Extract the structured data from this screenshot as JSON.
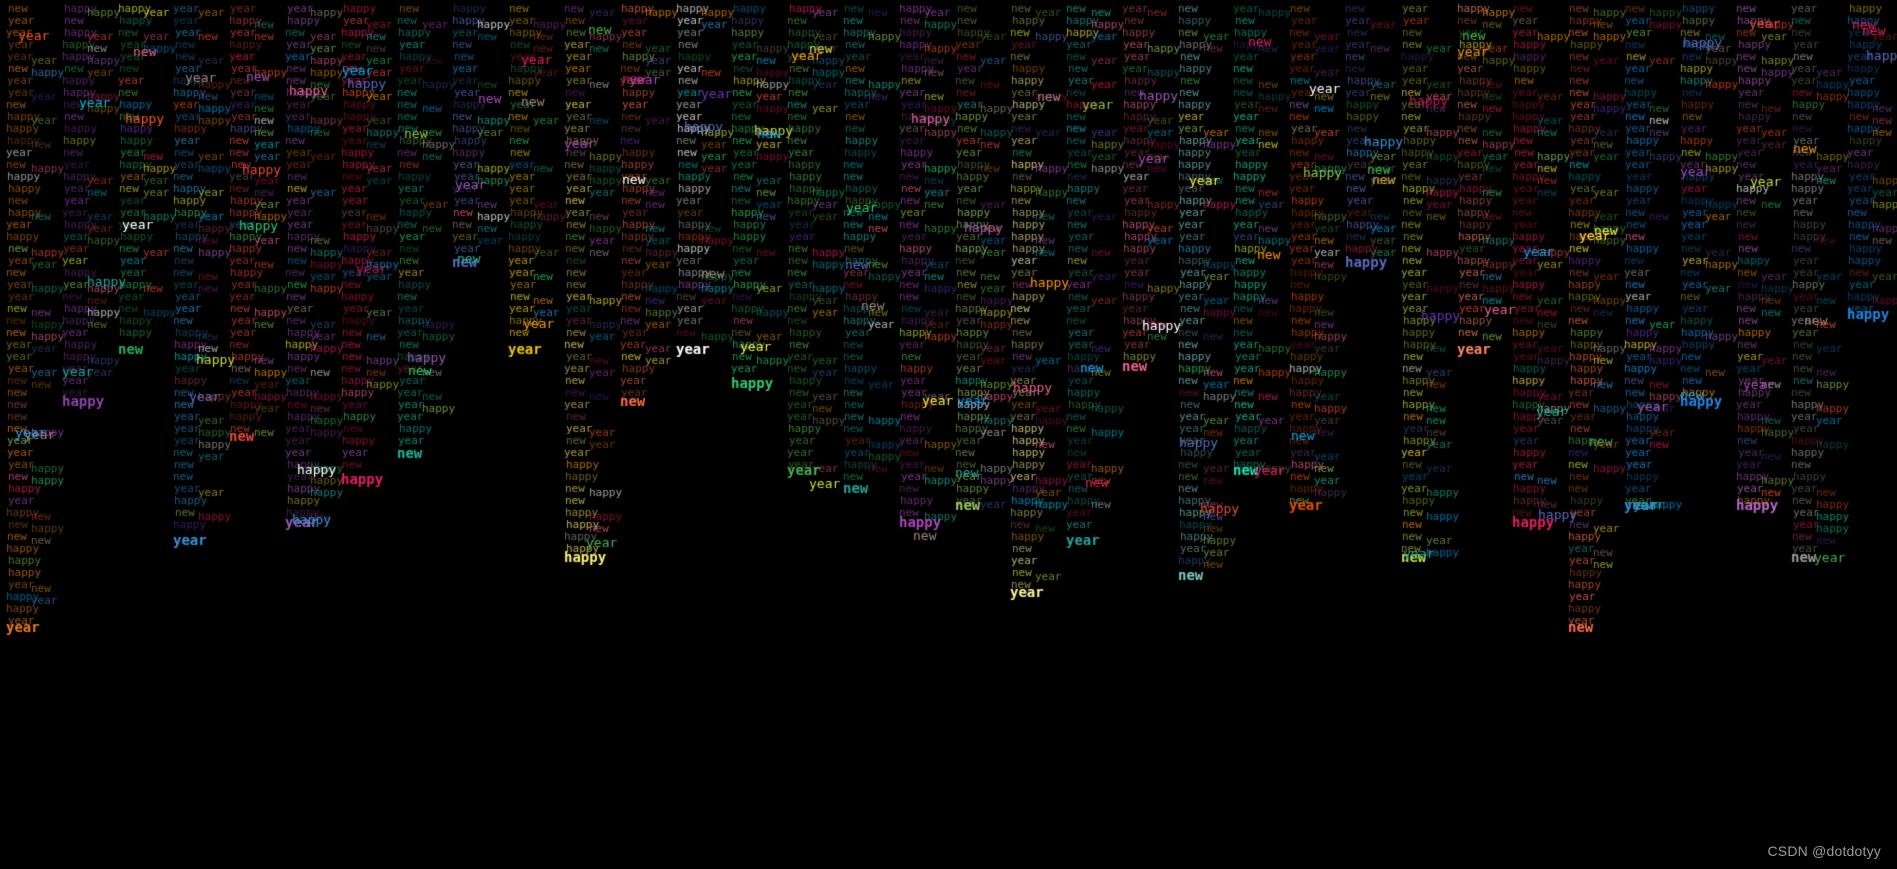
{
  "animation": {
    "words": [
      "happy",
      "new",
      "year"
    ],
    "background_color": "#000000",
    "palette": [
      "#e74c3c",
      "#f39c12",
      "#2ecc71",
      "#3498db",
      "#9b59b6",
      "#1abc9c",
      "#e91e63",
      "#cddc39",
      "#ffeb3b",
      "#00bcd4",
      "#8bc34a",
      "#ff5722",
      "#673ab7",
      "#5c6bc0",
      "#ffffff",
      "#4caf50",
      "#ff9800",
      "#03a9f4",
      "#c2185b",
      "#a1887f",
      "#26a69a",
      "#ab47bc",
      "#f06292",
      "#9ccc65"
    ],
    "columns": [
      {
        "word": "year",
        "color": "#e67e22",
        "length": 0.72
      },
      {
        "word": "happy",
        "color": "#8e44ad",
        "length": 0.46
      },
      {
        "word": "new",
        "color": "#27ae60",
        "length": 0.4
      },
      {
        "word": "year",
        "color": "#3498db",
        "length": 0.62
      },
      {
        "word": "new",
        "color": "#e74c3c",
        "length": 0.5
      },
      {
        "word": "year",
        "color": "#9b59b6",
        "length": 0.6
      },
      {
        "word": "happy",
        "color": "#e91e63",
        "length": 0.55
      },
      {
        "word": "new",
        "color": "#1abc9c",
        "length": 0.52
      },
      {
        "word": "new",
        "color": "#5c6bc0",
        "length": 0.3
      },
      {
        "word": "year",
        "color": "#f1c40f",
        "length": 0.4
      },
      {
        "word": "happy",
        "color": "#fff176",
        "length": 0.64
      },
      {
        "word": "new",
        "color": "#ff7043",
        "length": 0.46
      },
      {
        "word": "year",
        "color": "#ffffff",
        "length": 0.4
      },
      {
        "word": "happy",
        "color": "#2ecc71",
        "length": 0.44
      },
      {
        "word": "year",
        "color": "#4caf50",
        "length": 0.54
      },
      {
        "word": "new",
        "color": "#26a69a",
        "length": 0.56
      },
      {
        "word": "happy",
        "color": "#ab47bc",
        "length": 0.6
      },
      {
        "word": "new",
        "color": "#9ccc65",
        "length": 0.58
      },
      {
        "word": "year",
        "color": "#fff59d",
        "length": 0.68
      },
      {
        "word": "year",
        "color": "#26a69a",
        "length": 0.62
      },
      {
        "word": "new",
        "color": "#f06292",
        "length": 0.42
      },
      {
        "word": "new",
        "color": "#80cbc4",
        "length": 0.66
      },
      {
        "word": "new",
        "color": "#1de9b6",
        "length": 0.54
      },
      {
        "word": "year",
        "color": "#e65100",
        "length": 0.58
      },
      {
        "word": "happy",
        "color": "#5c6bc0",
        "length": 0.3
      },
      {
        "word": "new",
        "color": "#cddc39",
        "length": 0.64
      },
      {
        "word": "year",
        "color": "#ff8a65",
        "length": 0.4
      },
      {
        "word": "happy",
        "color": "#e91e63",
        "length": 0.6
      },
      {
        "word": "new",
        "color": "#ff7043",
        "length": 0.72
      },
      {
        "word": "year",
        "color": "#2196f3",
        "length": 0.58
      },
      {
        "word": "happy",
        "color": "#1e88e5",
        "length": 0.46
      },
      {
        "word": "happy",
        "color": "#ba68c8",
        "length": 0.58
      },
      {
        "word": "new",
        "color": "#9e9e9e",
        "length": 0.64
      },
      {
        "word": "happy",
        "color": "#1e88e5",
        "length": 0.36
      }
    ]
  },
  "watermark": "CSDN @dotdotyy"
}
